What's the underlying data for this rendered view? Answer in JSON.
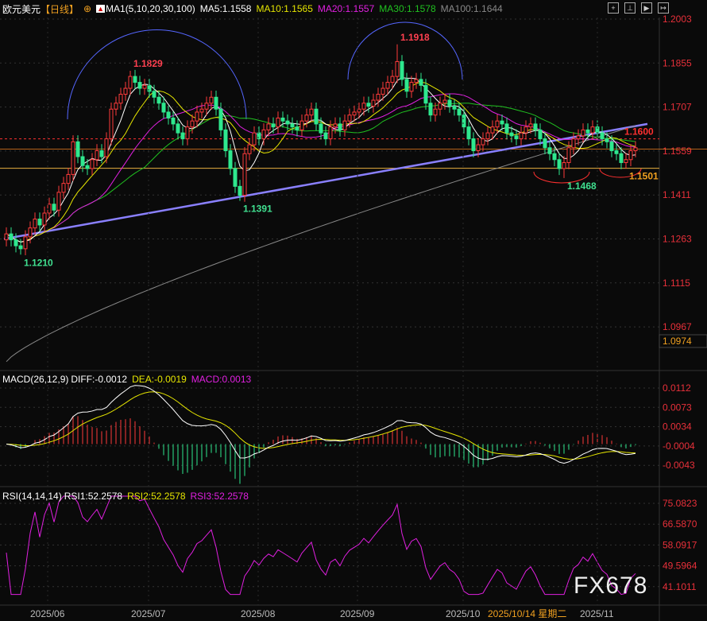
{
  "header": {
    "symbol": "欧元美元",
    "period": "【日线】",
    "ma_label": "MA1(5,10,20,30,100)",
    "ma5": "MA5:1.1558",
    "ma10": "MA10:1.1565",
    "ma20": "MA20:1.1557",
    "ma30": "MA30:1.1578",
    "ma100": "MA100:1.1644"
  },
  "toolbar": [
    "crosshair-icon",
    "chart-icon",
    "export-icon",
    "exit-icon"
  ],
  "colors": {
    "up": "#ff3b3b",
    "down": "#2ee88e",
    "ma5": "#ffffff",
    "ma10": "#e5e500",
    "ma20": "#e020e0",
    "ma30": "#20c020",
    "ma100": "#888888",
    "trend": "#8a80ff",
    "axis": "#e8303a"
  },
  "price_axis": [
    "1.2003",
    "1.1855",
    "1.1707",
    "1.1559",
    "1.1411",
    "1.1263",
    "1.1115",
    "1.0967"
  ],
  "current_price_box": "1.0974",
  "annotations": [
    {
      "i": 3,
      "v": "1.1210",
      "type": "low"
    },
    {
      "i": 26,
      "v": "1.1829",
      "type": "high"
    },
    {
      "i": 49,
      "v": "1.1391",
      "type": "low"
    },
    {
      "i": 82,
      "v": "1.1918",
      "type": "high"
    },
    {
      "i": 117,
      "v": "1.1468",
      "type": "low"
    },
    {
      "i": 130,
      "v": "1.1501",
      "type": "low"
    },
    {
      "i": 132,
      "v": "1.1600",
      "type": "level"
    }
  ],
  "macd": {
    "label": "MACD(26,12,9)",
    "diff": "DIFF:-0.0012",
    "dea": "DEA:-0.0019",
    "macd": "MACD:0.0013",
    "axis": [
      "0.0112",
      "0.0073",
      "0.0034",
      "-0.0004",
      "-0.0043"
    ]
  },
  "rsi": {
    "label": "RSI(14,14,14)",
    "rsi1": "RSI1:52.2578",
    "rsi2": "RSI2:52.2578",
    "rsi3": "RSI3:52.2578",
    "axis": [
      "75.0823",
      "66.5870",
      "58.0917",
      "49.5964",
      "41.1011"
    ]
  },
  "x_axis": [
    "2025/06",
    "2025/07",
    "2025/08",
    "2025/09",
    "2025/10",
    "2025/11"
  ],
  "cursor_date": "2025/10/14 星期二",
  "watermark": "FX678",
  "chart_data": {
    "type": "candlestick",
    "title": "欧元美元【日线】",
    "trendline": [
      1.1263,
      1.165
    ],
    "levels": [
      1.16,
      1.1501
    ],
    "close": [
      1.128,
      1.126,
      1.124,
      1.123,
      1.127,
      1.13,
      1.133,
      1.131,
      1.135,
      1.138,
      1.136,
      1.142,
      1.145,
      1.148,
      1.159,
      1.154,
      1.151,
      1.15,
      1.153,
      1.156,
      1.154,
      1.16,
      1.17,
      1.172,
      1.175,
      1.177,
      1.181,
      1.179,
      1.177,
      1.178,
      1.176,
      1.174,
      1.172,
      1.169,
      1.167,
      1.165,
      1.162,
      1.16,
      1.164,
      1.166,
      1.169,
      1.17,
      1.172,
      1.174,
      1.17,
      1.163,
      1.156,
      1.15,
      1.144,
      1.141,
      1.155,
      1.158,
      1.162,
      1.16,
      1.163,
      1.165,
      1.164,
      1.167,
      1.166,
      1.165,
      1.164,
      1.163,
      1.166,
      1.168,
      1.17,
      1.165,
      1.162,
      1.16,
      1.164,
      1.165,
      1.163,
      1.166,
      1.168,
      1.169,
      1.17,
      1.172,
      1.171,
      1.173,
      1.175,
      1.177,
      1.179,
      1.181,
      1.186,
      1.18,
      1.176,
      1.179,
      1.18,
      1.178,
      1.172,
      1.168,
      1.17,
      1.172,
      1.173,
      1.171,
      1.17,
      1.168,
      1.164,
      1.16,
      1.156,
      1.158,
      1.16,
      1.162,
      1.164,
      1.166,
      1.165,
      1.162,
      1.161,
      1.16,
      1.162,
      1.164,
      1.165,
      1.163,
      1.16,
      1.157,
      1.155,
      1.153,
      1.15,
      1.152,
      1.157,
      1.16,
      1.161,
      1.163,
      1.162,
      1.164,
      1.162,
      1.16,
      1.159,
      1.156,
      1.155,
      1.152,
      1.153,
      1.156,
      1.157
    ]
  }
}
